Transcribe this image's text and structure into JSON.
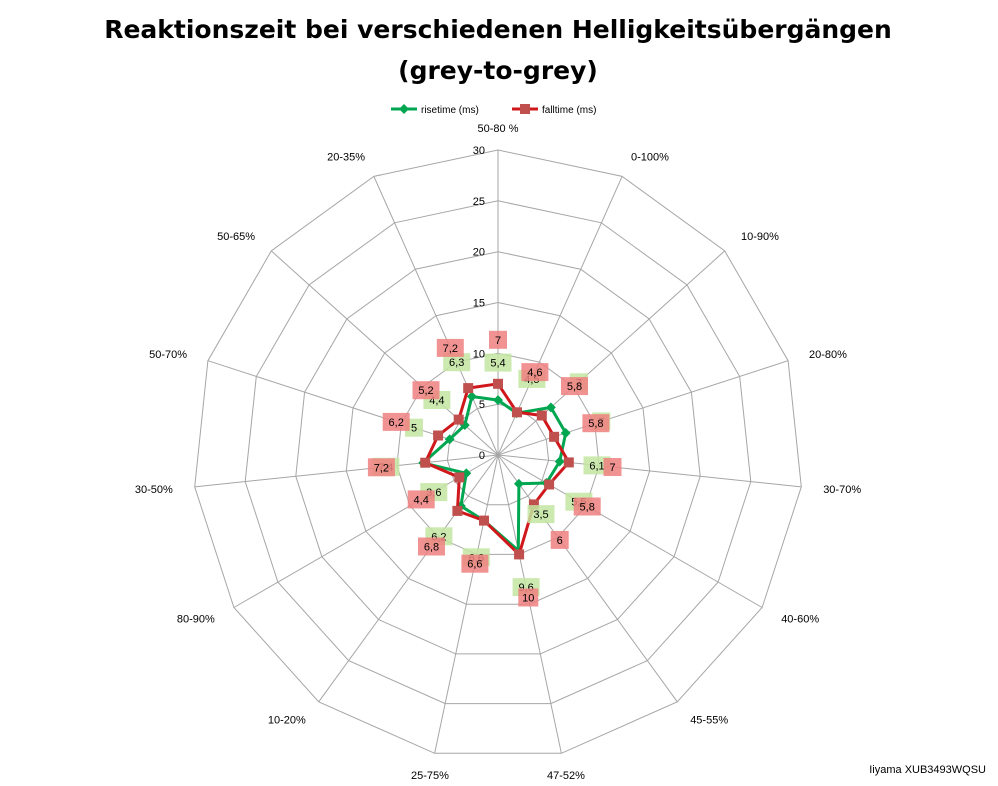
{
  "chart_data": {
    "type": "radar",
    "title_lines": [
      "Reaktionszeit bei verschiedenen Helligkeitsübergängen",
      "(grey-to-grey)"
    ],
    "categories": [
      "50-80 %",
      "0-100%",
      "10-90%",
      "20-80%",
      "30-70%",
      "40-60%",
      "45-55%",
      "47-52%",
      "25-75%",
      "10-20%",
      "80-90%",
      "30-50%",
      "50-70%",
      "50-65%",
      "20-35%"
    ],
    "r_range": [
      0,
      30
    ],
    "r_ticks": [
      0,
      5,
      10,
      15,
      20,
      25,
      30
    ],
    "r_tick_labels": [
      "0",
      "5",
      "10",
      "15",
      "20",
      "25",
      "30"
    ],
    "legend_position": "top",
    "series": [
      {
        "name": "risetime (ms)",
        "color": "#00a650",
        "label_bg": "#c3e6a1",
        "marker": "diamond",
        "values": [
          5.4,
          4.5,
          7,
          7,
          6.1,
          5.5,
          3.5,
          9.6,
          6.6,
          6.2,
          3.6,
          7.4,
          5,
          4.4,
          6.3
        ],
        "labels": [
          "5,4",
          "4,5",
          "7",
          "7",
          "6,1",
          "5,5",
          "3,5",
          "9,6",
          "6,6",
          "6,2",
          "3,6",
          "7,4",
          "5",
          "4,4",
          "6,3"
        ]
      },
      {
        "name": "falltime (ms)",
        "color": "#d0171b",
        "label_bg": "#f08080",
        "marker": "square",
        "values": [
          7,
          4.6,
          5.8,
          5.8,
          7,
          5.8,
          6,
          10,
          6.6,
          6.8,
          4.4,
          7.2,
          6.2,
          5.2,
          7.2
        ],
        "labels": [
          "7",
          "4,6",
          "5,8",
          "5,8",
          "7",
          "5,8",
          "6",
          "10",
          "6,6",
          "6,8",
          "4,4",
          "7,2",
          "6,2",
          "5,2",
          "7,2"
        ]
      }
    ],
    "footer_note": "Iiyama XUB3493WQSU"
  }
}
